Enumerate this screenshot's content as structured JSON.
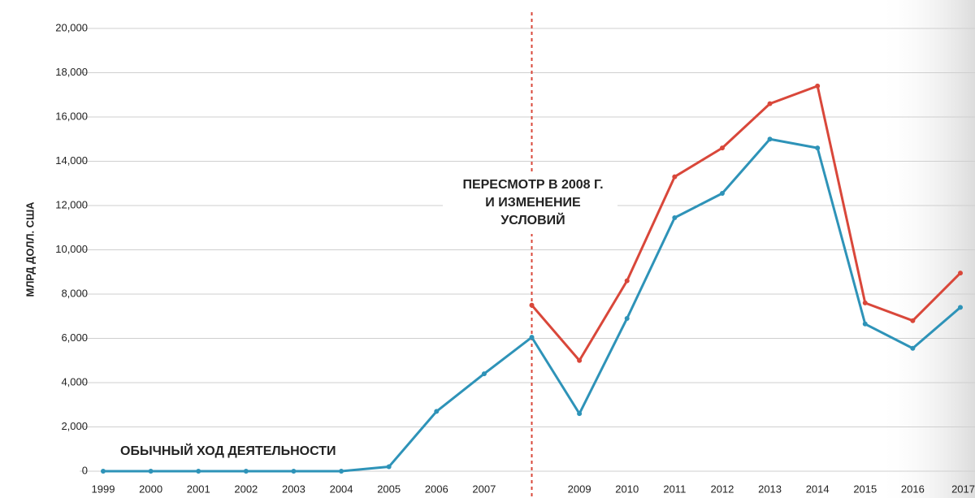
{
  "chart_data": {
    "type": "line",
    "y_label": "МЛРД ДОЛЛ. США",
    "categories": [
      "1999",
      "2000",
      "2001",
      "2002",
      "2003",
      "2004",
      "2005",
      "2006",
      "2007",
      null,
      "2009",
      "2010",
      "2011",
      "2012",
      "2013",
      "2014",
      "2015",
      "2016",
      "2017"
    ],
    "series": [
      {
        "name": "ОБЫЧНЫЙ ХОД ДЕЯТЕЛЬНОСТИ",
        "color": "#2e93b8",
        "values": [
          0,
          0,
          0,
          0,
          0,
          0,
          200,
          2700,
          4400,
          6050,
          2600,
          6900,
          11450,
          12550,
          15000,
          14600,
          6650,
          5550,
          7400
        ]
      },
      {
        "color": "#d9473a",
        "values": [
          null,
          null,
          null,
          null,
          null,
          null,
          null,
          null,
          null,
          7500,
          5000,
          8600,
          13300,
          14600,
          16600,
          17400,
          7600,
          6800,
          8950
        ]
      }
    ],
    "annotation": [
      "ПЕРЕСМОТР В 2008 Г.",
      "И ИЗМЕНЕНИЕ",
      "УСЛОВИЙ"
    ],
    "annotation_color": "#d9473a",
    "ylim": [
      0,
      20000
    ],
    "yticks": [
      0,
      {
        "value": 2000,
        "label": "2,000"
      },
      {
        "value": 4000,
        "label": "4,000"
      },
      {
        "value": 6000,
        "label": "6,000"
      },
      {
        "value": 8000,
        "label": "8,000"
      },
      {
        "value": 10000,
        "label": "10,000"
      },
      {
        "value": 12000,
        "label": "12,000"
      },
      {
        "value": 14000,
        "label": "14,000"
      },
      {
        "value": 16000,
        "label": "16,000"
      },
      {
        "value": 18000,
        "label": "18,000"
      },
      {
        "value": 20000,
        "label": "20,000"
      }
    ],
    "grid": true
  }
}
